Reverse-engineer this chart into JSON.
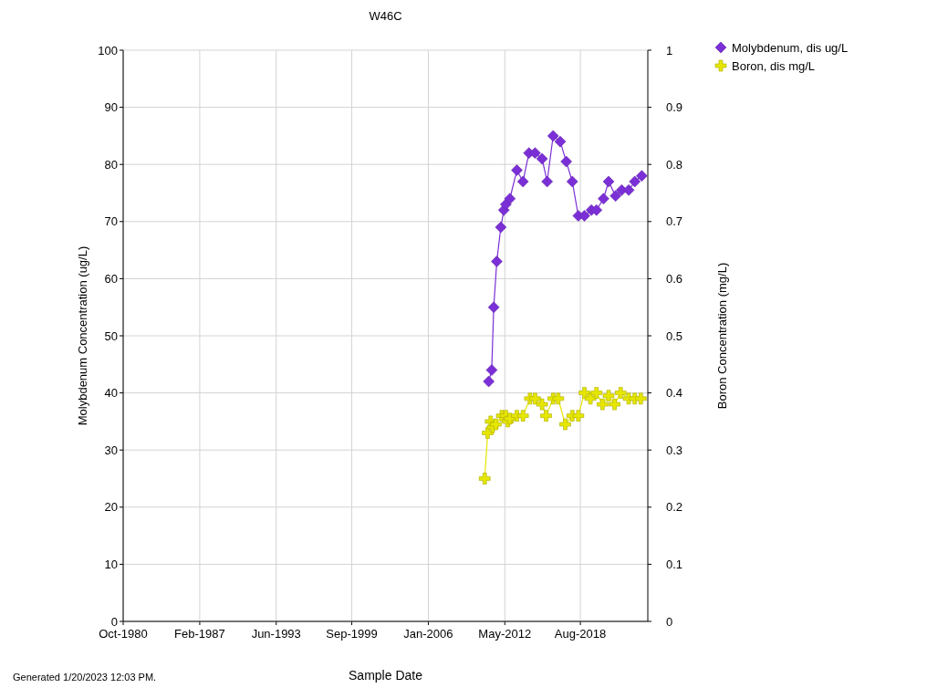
{
  "chart_data": {
    "type": "line",
    "title": "W46C",
    "xlabel": "Sample Date",
    "ylabel": "Molybdenum Concentration (ug/L)",
    "y2label": "Boron Concentration (mg/L)",
    "xlim": [
      "1980-10",
      "2024-03"
    ],
    "xticks": [
      {
        "value": "1980-10",
        "label": "Oct-1980"
      },
      {
        "value": "1987-02",
        "label": "Feb-1987"
      },
      {
        "value": "1993-06",
        "label": "Jun-1993"
      },
      {
        "value": "1999-09",
        "label": "Sep-1999"
      },
      {
        "value": "2006-01",
        "label": "Jan-2006"
      },
      {
        "value": "2012-05",
        "label": "May-2012"
      },
      {
        "value": "2018-08",
        "label": "Aug-2018"
      }
    ],
    "ylim": [
      0,
      100
    ],
    "yticks": [
      0,
      10,
      20,
      30,
      40,
      50,
      60,
      70,
      80,
      90,
      100
    ],
    "y2lim": [
      0,
      1
    ],
    "y2ticks": [
      0,
      0.1,
      0.2,
      0.3,
      0.4,
      0.5,
      0.6,
      0.7,
      0.8,
      0.9,
      1
    ],
    "grid": true,
    "legend": "top right",
    "annotations": [
      "Generated 1/20/2023 12:03 PM."
    ],
    "series": [
      {
        "name": "Molybdenum, dis ug/L",
        "color": "#7b2fd6",
        "marker": "diamond",
        "x": [
          "2011-01",
          "2011-04",
          "2011-06",
          "2011-09",
          "2012-01",
          "2012-04",
          "2012-06",
          "2012-10",
          "2013-05",
          "2013-11",
          "2014-05",
          "2014-11",
          "2015-06",
          "2015-11",
          "2016-05",
          "2016-12",
          "2017-06",
          "2017-12",
          "2018-06",
          "2018-12",
          "2019-07",
          "2019-12",
          "2020-07",
          "2020-12",
          "2021-07",
          "2022-01",
          "2022-08",
          "2023-02",
          "2023-09"
        ],
        "values": [
          42,
          44,
          55,
          63,
          69,
          72,
          73,
          74,
          79,
          77,
          82,
          82,
          81,
          77,
          85,
          84,
          80.5,
          77,
          71,
          71,
          72,
          72,
          74,
          77,
          74.5,
          75.5,
          75.5,
          77,
          78
        ]
      },
      {
        "name": "Boron, dis mg/L",
        "color": "#e6e600",
        "marker": "cross",
        "axis": "y2",
        "x": [
          "2010-09",
          "2010-12",
          "2011-03",
          "2011-05",
          "2011-08",
          "2012-02",
          "2012-06",
          "2012-08",
          "2012-10",
          "2013-05",
          "2013-11",
          "2014-06",
          "2014-11",
          "2015-06",
          "2015-10",
          "2016-05",
          "2016-10",
          "2017-05",
          "2017-12",
          "2018-06",
          "2018-12",
          "2019-06",
          "2019-12",
          "2020-06",
          "2020-12",
          "2021-06",
          "2021-12",
          "2022-08",
          "2023-02",
          "2023-08"
        ],
        "values": [
          0.25,
          0.33,
          0.35,
          0.34,
          0.345,
          0.36,
          0.36,
          0.35,
          0.355,
          0.36,
          0.36,
          0.39,
          0.39,
          0.38,
          0.36,
          0.39,
          0.39,
          0.345,
          0.36,
          0.36,
          0.4,
          0.39,
          0.4,
          0.38,
          0.395,
          0.38,
          0.4,
          0.39,
          0.39,
          0.39
        ]
      }
    ]
  }
}
